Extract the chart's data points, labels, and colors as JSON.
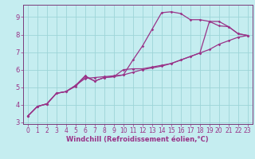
{
  "xlabel": "Windchill (Refroidissement éolien,°C)",
  "background_color": "#c5edf0",
  "grid_color": "#9dd4d8",
  "line_color": "#993388",
  "spine_color": "#7a3a7a",
  "xlim": [
    -0.5,
    23.5
  ],
  "ylim": [
    2.9,
    9.7
  ],
  "xticks": [
    0,
    1,
    2,
    3,
    4,
    5,
    6,
    7,
    8,
    9,
    10,
    11,
    12,
    13,
    14,
    15,
    16,
    17,
    18,
    19,
    20,
    21,
    22,
    23
  ],
  "yticks": [
    3,
    4,
    5,
    6,
    7,
    8,
    9
  ],
  "line1_x": [
    0,
    1,
    2,
    3,
    4,
    5,
    6,
    7,
    8,
    9,
    10,
    11,
    12,
    13,
    14,
    15,
    16,
    17,
    18,
    19,
    20,
    21,
    22,
    23
  ],
  "line1_y": [
    3.35,
    3.9,
    4.05,
    4.65,
    4.75,
    5.1,
    5.5,
    5.55,
    5.6,
    5.65,
    5.7,
    5.85,
    6.0,
    6.1,
    6.2,
    6.35,
    6.55,
    6.75,
    6.95,
    7.15,
    7.45,
    7.65,
    7.85,
    7.95
  ],
  "line2_x": [
    0,
    1,
    2,
    3,
    4,
    5,
    6,
    7,
    8,
    9,
    10,
    11,
    12,
    13,
    14,
    15,
    16,
    17,
    18,
    19,
    20,
    21,
    22,
    23
  ],
  "line2_y": [
    3.35,
    3.9,
    4.05,
    4.65,
    4.75,
    5.1,
    5.65,
    5.35,
    5.55,
    5.6,
    5.7,
    6.55,
    7.35,
    8.3,
    9.25,
    9.3,
    9.2,
    8.85,
    8.85,
    8.75,
    8.5,
    8.45,
    8.05,
    7.95
  ],
  "line3_x": [
    0,
    1,
    2,
    3,
    4,
    5,
    6,
    7,
    8,
    9,
    10,
    11,
    12,
    13,
    14,
    15,
    16,
    17,
    18,
    19,
    20,
    21,
    22,
    23
  ],
  "line3_y": [
    3.35,
    3.9,
    4.05,
    4.65,
    4.75,
    5.05,
    5.6,
    5.35,
    5.55,
    5.6,
    6.0,
    6.05,
    6.05,
    6.15,
    6.25,
    6.35,
    6.55,
    6.75,
    6.95,
    8.75,
    8.75,
    8.45,
    8.05,
    7.95
  ],
  "tick_fontsize": 5.5,
  "xlabel_fontsize": 6.0,
  "marker_size": 1.8,
  "line_width": 0.9
}
